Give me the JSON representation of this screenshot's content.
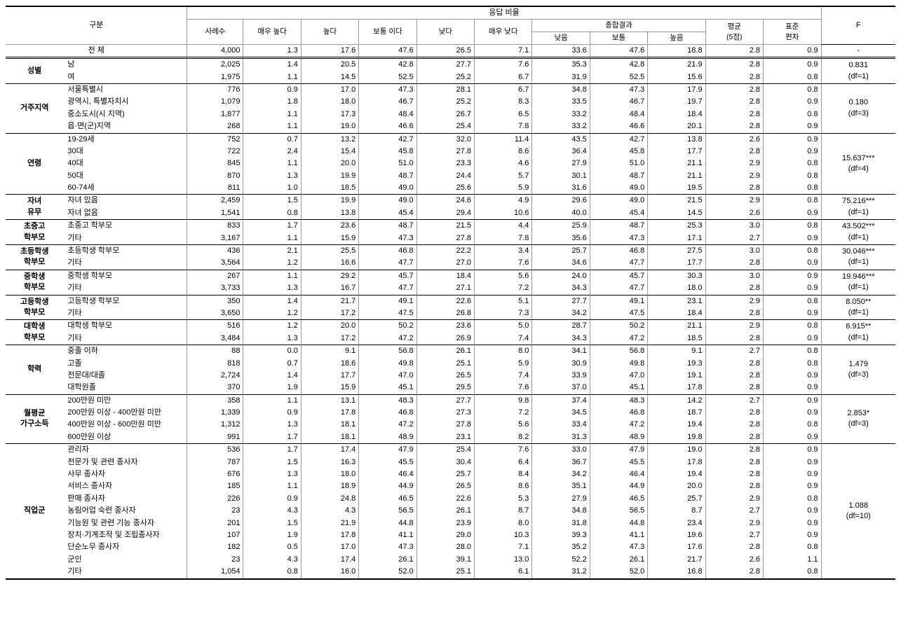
{
  "headers": {
    "gubun": "구분",
    "response_ratio": "응답 비율",
    "n": "사례수",
    "very_high": "매우 높다",
    "high": "높다",
    "normal": "보통 이다",
    "low": "낮다",
    "very_low": "매우 낮다",
    "combined": "종합결과",
    "comb_low": "낮음",
    "comb_normal": "보통",
    "comb_high": "높음",
    "mean": "평균\n(5점)",
    "std": "표준\n편차",
    "f": "F"
  },
  "groups": [
    {
      "category": "",
      "rows": [
        {
          "label": "전 체",
          "labelCenter": true,
          "n": "4,000",
          "v": [
            "1.3",
            "17.6",
            "47.6",
            "26.5",
            "7.1",
            "33.6",
            "47.6",
            "18.8",
            "2.8",
            "0.9"
          ],
          "f": "-"
        }
      ]
    },
    {
      "category": "성별",
      "rows": [
        {
          "label": "남",
          "n": "2,025",
          "v": [
            "1.4",
            "20.5",
            "42.8",
            "27.7",
            "7.6",
            "35.3",
            "42.8",
            "21.9",
            "2.8",
            "0.9"
          ],
          "f": "0.831\n(df=1)"
        },
        {
          "label": "여",
          "n": "1,975",
          "v": [
            "1.1",
            "14.5",
            "52.5",
            "25.2",
            "6.7",
            "31.9",
            "52.5",
            "15.6",
            "2.8",
            "0.8"
          ]
        }
      ]
    },
    {
      "category": "거주지역",
      "rows": [
        {
          "label": "서울특별시",
          "n": "776",
          "v": [
            "0.9",
            "17.0",
            "47.3",
            "28.1",
            "6.7",
            "34.8",
            "47.3",
            "17.9",
            "2.8",
            "0.8"
          ]
        },
        {
          "label": "광역시, 특별자치시",
          "n": "1,079",
          "v": [
            "1.8",
            "18.0",
            "46.7",
            "25.2",
            "8.3",
            "33.5",
            "46.7",
            "19.7",
            "2.8",
            "0.9"
          ],
          "f": "0.180\n(df=3)"
        },
        {
          "label": "중소도시(시 지역)",
          "n": "1,877",
          "v": [
            "1.1",
            "17.3",
            "48.4",
            "26.7",
            "6.5",
            "33.2",
            "48.4",
            "18.4",
            "2.8",
            "0.8"
          ]
        },
        {
          "label": "읍·면(군)지역",
          "n": "268",
          "v": [
            "1.1",
            "19.0",
            "46.6",
            "25.4",
            "7.8",
            "33.2",
            "46.6",
            "20.1",
            "2.8",
            "0.9"
          ]
        }
      ]
    },
    {
      "category": "연령",
      "rows": [
        {
          "label": "19-29세",
          "n": "752",
          "v": [
            "0.7",
            "13.2",
            "42.7",
            "32.0",
            "11.4",
            "43.5",
            "42.7",
            "13.8",
            "2.6",
            "0.9"
          ]
        },
        {
          "label": "30대",
          "n": "722",
          "v": [
            "2.4",
            "15.4",
            "45.8",
            "27.8",
            "8.6",
            "36.4",
            "45.8",
            "17.7",
            "2.8",
            "0.9"
          ]
        },
        {
          "label": "40대",
          "n": "845",
          "v": [
            "1.1",
            "20.0",
            "51.0",
            "23.3",
            "4.6",
            "27.9",
            "51.0",
            "21.1",
            "2.9",
            "0.8"
          ],
          "f": "15.637***\n(df=4)"
        },
        {
          "label": "50대",
          "n": "870",
          "v": [
            "1.3",
            "19.9",
            "48.7",
            "24.4",
            "5.7",
            "30.1",
            "48.7",
            "21.1",
            "2.9",
            "0.8"
          ]
        },
        {
          "label": "60-74세",
          "n": "811",
          "v": [
            "1.0",
            "18.5",
            "49.0",
            "25.6",
            "5.9",
            "31.6",
            "49.0",
            "19.5",
            "2.8",
            "0.8"
          ]
        }
      ]
    },
    {
      "category": "자녀\n유무",
      "rows": [
        {
          "label": "자녀 있음",
          "n": "2,459",
          "v": [
            "1.5",
            "19.9",
            "49.0",
            "24.6",
            "4.9",
            "29.6",
            "49.0",
            "21.5",
            "2.9",
            "0.8"
          ],
          "f": "75.216***\n(df=1)"
        },
        {
          "label": "자녀 없음",
          "n": "1,541",
          "v": [
            "0.8",
            "13.8",
            "45.4",
            "29.4",
            "10.6",
            "40.0",
            "45.4",
            "14.5",
            "2.6",
            "0.9"
          ]
        }
      ]
    },
    {
      "category": "초중고\n학부모",
      "rows": [
        {
          "label": "초중고 학부모",
          "n": "833",
          "v": [
            "1.7",
            "23.6",
            "48.7",
            "21.5",
            "4.4",
            "25.9",
            "48.7",
            "25.3",
            "3.0",
            "0.8"
          ],
          "f": "43.502***\n(df=1)"
        },
        {
          "label": "기타",
          "n": "3,167",
          "v": [
            "1.1",
            "15.9",
            "47.3",
            "27.8",
            "7.8",
            "35.6",
            "47.3",
            "17.1",
            "2.7",
            "0.9"
          ]
        }
      ]
    },
    {
      "category": "초등학생\n학부모",
      "rows": [
        {
          "label": "초등학생 학부모",
          "n": "436",
          "v": [
            "2.1",
            "25.5",
            "46.8",
            "22.2",
            "3.4",
            "25.7",
            "46.8",
            "27.5",
            "3.0",
            "0.8"
          ],
          "f": "30.046***\n(df=1)"
        },
        {
          "label": "기타",
          "n": "3,564",
          "v": [
            "1.2",
            "16.6",
            "47.7",
            "27.0",
            "7.6",
            "34.6",
            "47.7",
            "17.7",
            "2.8",
            "0.9"
          ]
        }
      ]
    },
    {
      "category": "중학생\n학부모",
      "rows": [
        {
          "label": "중학생 학부모",
          "n": "267",
          "v": [
            "1.1",
            "29.2",
            "45.7",
            "18.4",
            "5.6",
            "24.0",
            "45.7",
            "30.3",
            "3.0",
            "0.9"
          ],
          "f": "19.946***\n(df=1)"
        },
        {
          "label": "기타",
          "n": "3,733",
          "v": [
            "1.3",
            "16.7",
            "47.7",
            "27.1",
            "7.2",
            "34.3",
            "47.7",
            "18.0",
            "2.8",
            "0.9"
          ]
        }
      ]
    },
    {
      "category": "고등학생\n학부모",
      "rows": [
        {
          "label": "고등학생 학부모",
          "n": "350",
          "v": [
            "1.4",
            "21.7",
            "49.1",
            "22.6",
            "5.1",
            "27.7",
            "49.1",
            "23.1",
            "2.9",
            "0.8"
          ],
          "f": "8.050**\n(df=1)"
        },
        {
          "label": "기타",
          "n": "3,650",
          "v": [
            "1.2",
            "17.2",
            "47.5",
            "26.8",
            "7.3",
            "34.2",
            "47.5",
            "18.4",
            "2.8",
            "0.9"
          ]
        }
      ]
    },
    {
      "category": "대학생\n학부모",
      "rows": [
        {
          "label": "대학생 학부모",
          "n": "516",
          "v": [
            "1.2",
            "20.0",
            "50.2",
            "23.6",
            "5.0",
            "28.7",
            "50.2",
            "21.1",
            "2.9",
            "0.8"
          ],
          "f": "6.915**\n(df=1)"
        },
        {
          "label": "기타",
          "n": "3,484",
          "v": [
            "1.3",
            "17.2",
            "47.2",
            "26.9",
            "7.4",
            "34.3",
            "47.2",
            "18.5",
            "2.8",
            "0.9"
          ]
        }
      ]
    },
    {
      "category": "학력",
      "rows": [
        {
          "label": "중졸 이하",
          "n": "88",
          "v": [
            "0.0",
            "9.1",
            "56.8",
            "26.1",
            "8.0",
            "34.1",
            "56.8",
            "9.1",
            "2.7",
            "0.8"
          ]
        },
        {
          "label": "고졸",
          "n": "818",
          "v": [
            "0.7",
            "18.6",
            "49.8",
            "25.1",
            "5.9",
            "30.9",
            "49.8",
            "19.3",
            "2.8",
            "0.8"
          ],
          "f": "1.479\n(df=3)"
        },
        {
          "label": "전문대/대졸",
          "n": "2,724",
          "v": [
            "1.4",
            "17.7",
            "47.0",
            "26.5",
            "7.4",
            "33.9",
            "47.0",
            "19.1",
            "2.8",
            "0.9"
          ]
        },
        {
          "label": "대학원졸",
          "n": "370",
          "v": [
            "1.9",
            "15.9",
            "45.1",
            "29.5",
            "7.6",
            "37.0",
            "45.1",
            "17.8",
            "2.8",
            "0.9"
          ]
        }
      ]
    },
    {
      "category": "월평균\n가구소득",
      "rows": [
        {
          "label": "200만원 미만",
          "n": "358",
          "v": [
            "1.1",
            "13.1",
            "48.3",
            "27.7",
            "9.8",
            "37.4",
            "48.3",
            "14.2",
            "2.7",
            "0.9"
          ]
        },
        {
          "label": "200만원 이상 - 400만원 미만",
          "n": "1,339",
          "v": [
            "0.9",
            "17.8",
            "46.8",
            "27.3",
            "7.2",
            "34.5",
            "46.8",
            "18.7",
            "2.8",
            "0.9"
          ],
          "f": "2.853*\n(df=3)"
        },
        {
          "label": "400만원 이상 - 600만원 미만",
          "n": "1,312",
          "v": [
            "1.3",
            "18.1",
            "47.2",
            "27.8",
            "5.6",
            "33.4",
            "47.2",
            "19.4",
            "2.8",
            "0.8"
          ]
        },
        {
          "label": "600만원 이상",
          "n": "991",
          "v": [
            "1.7",
            "18.1",
            "48.9",
            "23.1",
            "8.2",
            "31.3",
            "48.9",
            "19.8",
            "2.8",
            "0.9"
          ]
        }
      ]
    },
    {
      "category": "직업군",
      "rows": [
        {
          "label": "관리자",
          "n": "536",
          "v": [
            "1.7",
            "17.4",
            "47.9",
            "25.4",
            "7.6",
            "33.0",
            "47.9",
            "19.0",
            "2.8",
            "0.9"
          ]
        },
        {
          "label": "전문가 및 관련  종사자",
          "n": "787",
          "v": [
            "1.5",
            "16.3",
            "45.5",
            "30.4",
            "6.4",
            "36.7",
            "45.5",
            "17.8",
            "2.8",
            "0.9"
          ]
        },
        {
          "label": "사무 종사자",
          "n": "676",
          "v": [
            "1.3",
            "18.0",
            "46.4",
            "25.7",
            "8.4",
            "34.2",
            "46.4",
            "19.4",
            "2.8",
            "0.9"
          ]
        },
        {
          "label": "서비스 종사자",
          "n": "185",
          "v": [
            "1.1",
            "18.9",
            "44.9",
            "26.5",
            "8.6",
            "35.1",
            "44.9",
            "20.0",
            "2.8",
            "0.9"
          ]
        },
        {
          "label": "판매 종사자",
          "n": "226",
          "v": [
            "0.9",
            "24.8",
            "46.5",
            "22.6",
            "5.3",
            "27.9",
            "46.5",
            "25.7",
            "2.9",
            "0.8"
          ]
        },
        {
          "label": "농림어업 숙련 종사자",
          "n": "23",
          "v": [
            "4.3",
            "4.3",
            "56.5",
            "26.1",
            "8.7",
            "34.8",
            "56.5",
            "8.7",
            "2.7",
            "0.9"
          ],
          "f": "1.088\n(df=10)"
        },
        {
          "label": "기능원 및 관련 기능 종사자",
          "n": "201",
          "v": [
            "1.5",
            "21.9",
            "44.8",
            "23.9",
            "8.0",
            "31.8",
            "44.8",
            "23.4",
            "2.9",
            "0.9"
          ]
        },
        {
          "label": "장치·기계조작 및 조립종사자",
          "n": "107",
          "v": [
            "1.9",
            "17.8",
            "41.1",
            "29.0",
            "10.3",
            "39.3",
            "41.1",
            "19.6",
            "2.7",
            "0.9"
          ]
        },
        {
          "label": "단순노무 종사자",
          "n": "182",
          "v": [
            "0.5",
            "17.0",
            "47.3",
            "28.0",
            "7.1",
            "35.2",
            "47.3",
            "17.6",
            "2.8",
            "0.8"
          ]
        },
        {
          "label": "군인",
          "n": "23",
          "v": [
            "4.3",
            "17.4",
            "26.1",
            "39.1",
            "13.0",
            "52.2",
            "26.1",
            "21.7",
            "2.6",
            "1.1"
          ]
        },
        {
          "label": "기타",
          "n": "1,054",
          "v": [
            "0.8",
            "16.0",
            "52.0",
            "25.1",
            "6.1",
            "31.2",
            "52.0",
            "16.8",
            "2.8",
            "0.8"
          ]
        }
      ]
    }
  ]
}
